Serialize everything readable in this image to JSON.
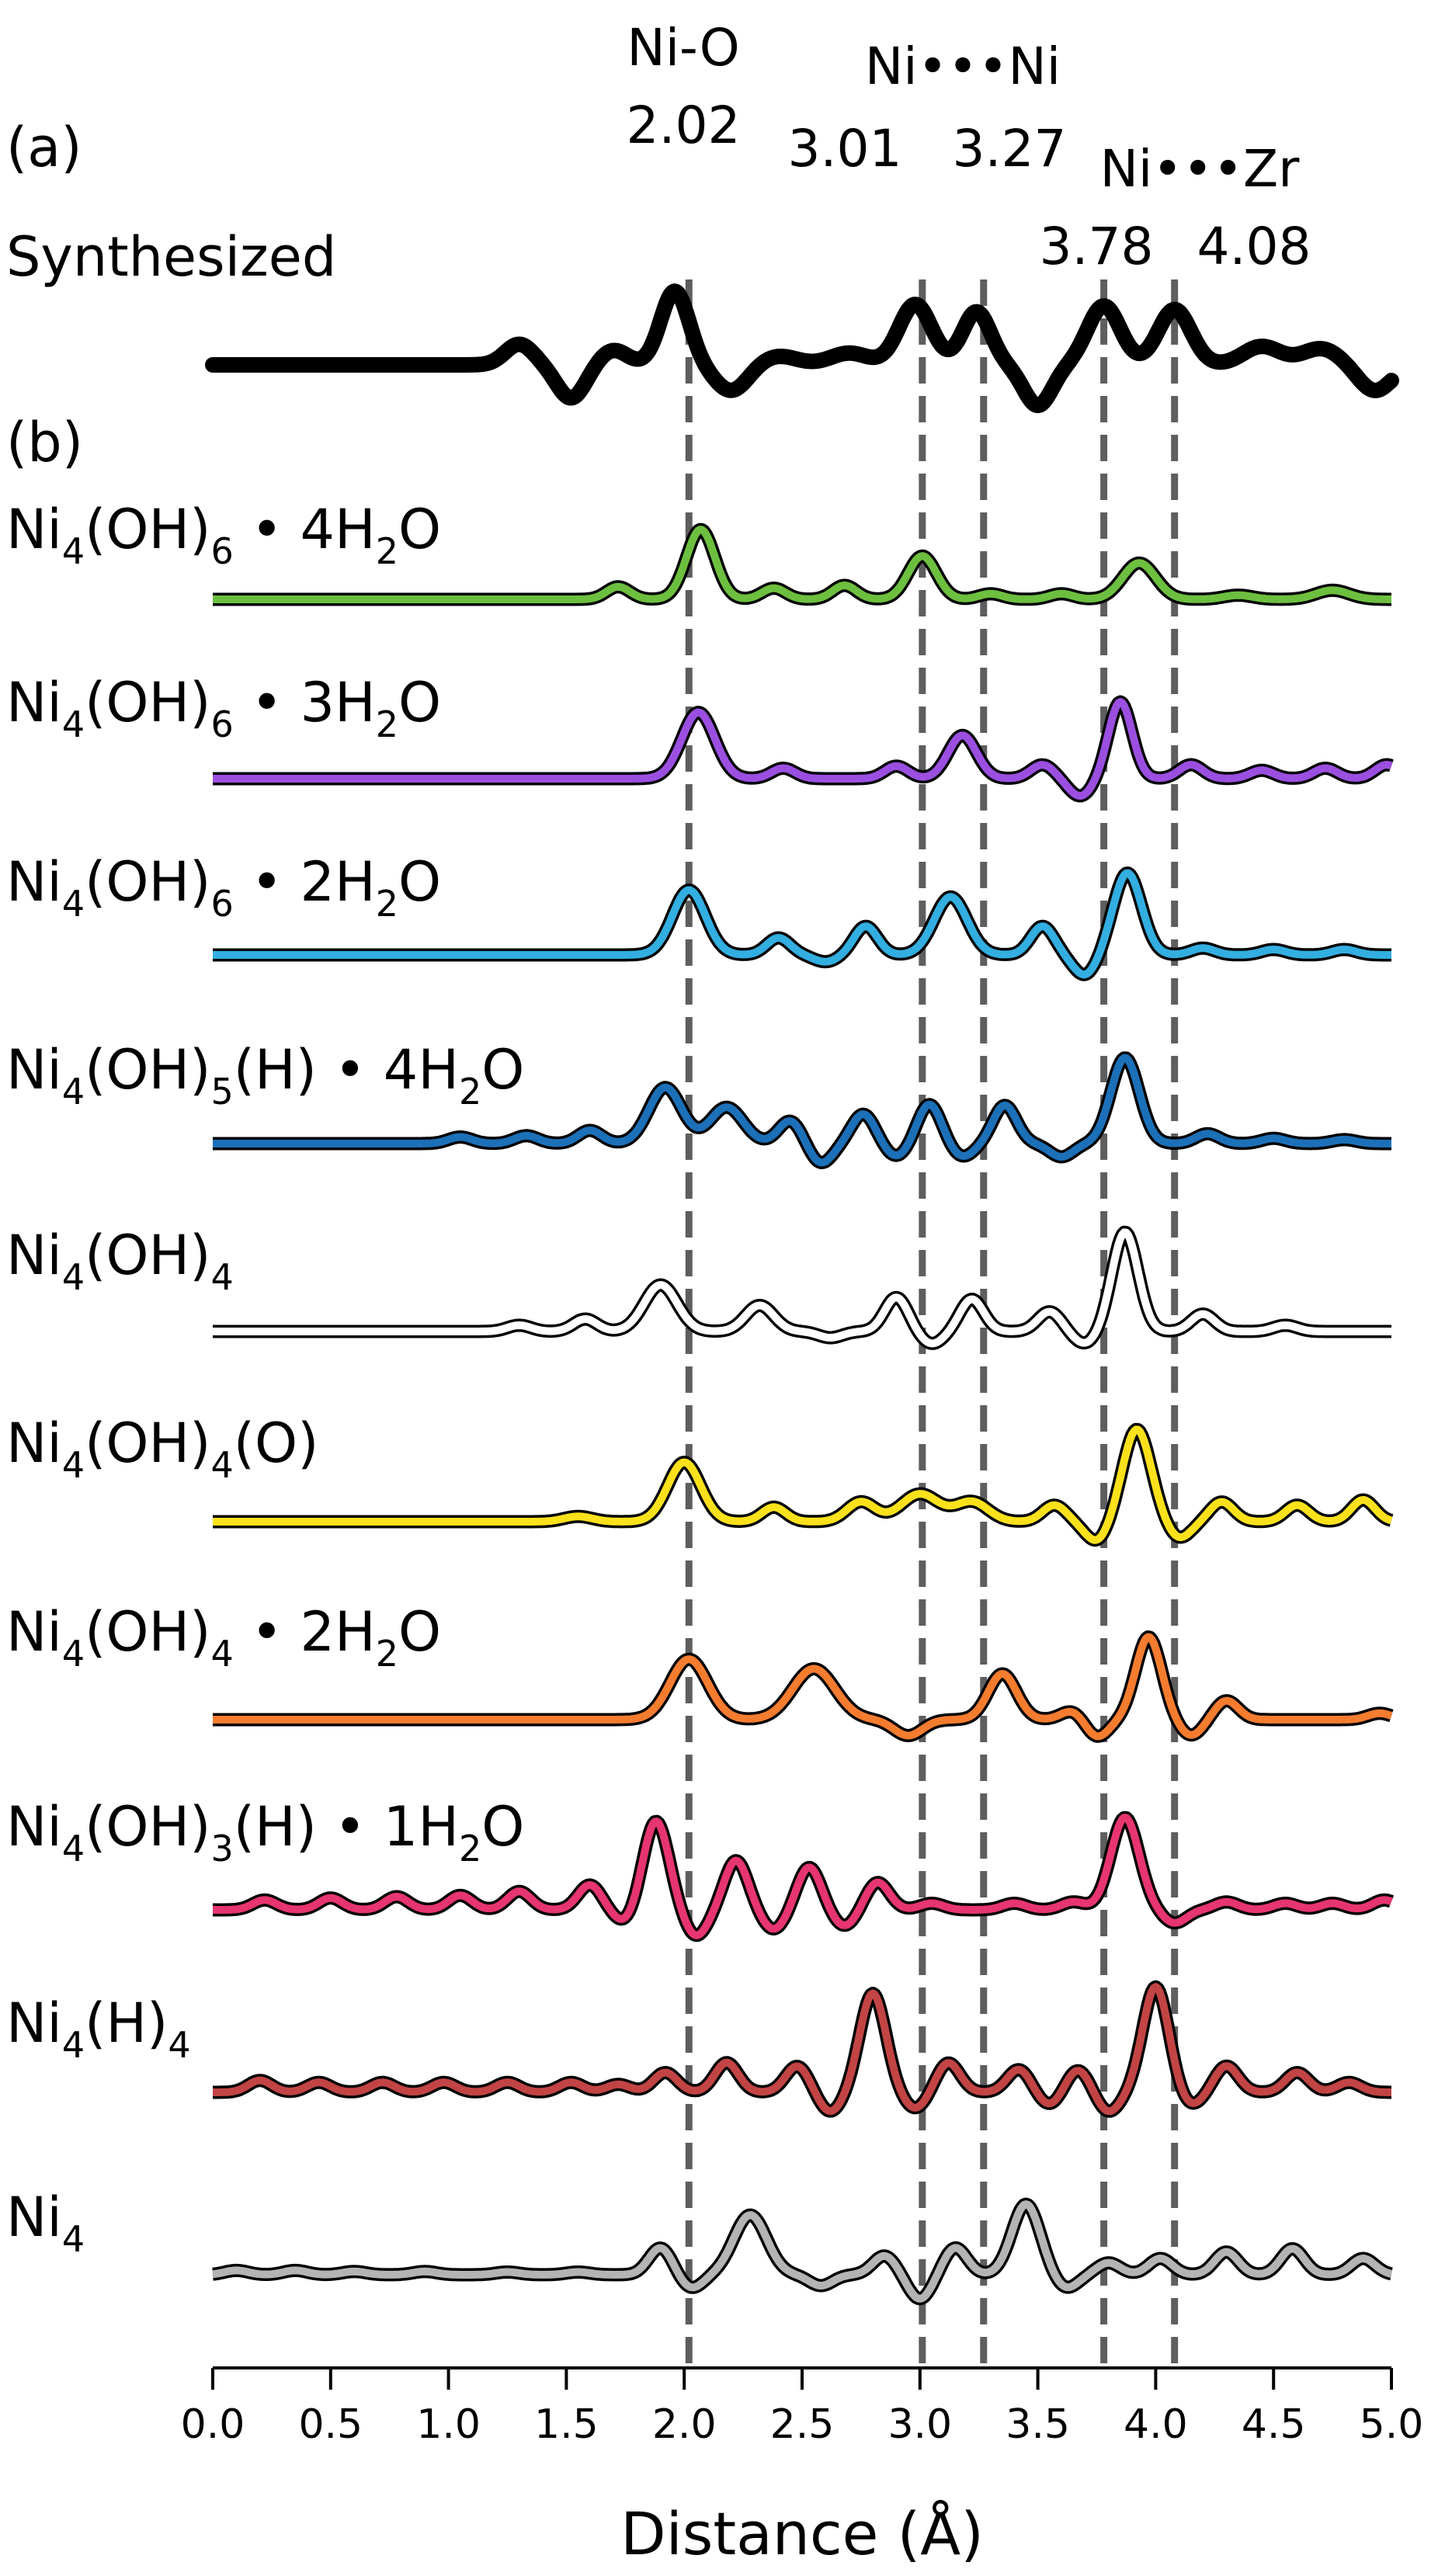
{
  "chart_data": {
    "type": "line",
    "xlabel": "Distance (Å)",
    "xlim": [
      0.0,
      5.0
    ],
    "x_ticks": [
      "0.0",
      "0.5",
      "1.0",
      "1.5",
      "2.0",
      "2.5",
      "3.0",
      "3.5",
      "4.0",
      "4.5",
      "5.0"
    ],
    "panel_labels": {
      "a": "(a)",
      "b": "(b)"
    },
    "reference_lines": [
      {
        "x": 2.02,
        "value_label": "2.02"
      },
      {
        "x": 3.01,
        "value_label": "3.01"
      },
      {
        "x": 3.27,
        "value_label": "3.27"
      },
      {
        "x": 3.78,
        "value_label": "3.78"
      },
      {
        "x": 4.08,
        "value_label": "4.08"
      }
    ],
    "reference_groups": {
      "ni_o": "Ni-O",
      "ni_ni": "Ni•••Ni",
      "ni_zr": "Ni•••Zr"
    },
    "series": [
      {
        "key": "synth",
        "name": "Synthesized",
        "color": "#000000",
        "thick": true,
        "peaks": [
          [
            1.96,
            1.0,
            0.06
          ],
          [
            2.98,
            0.82,
            0.07
          ],
          [
            3.24,
            0.72,
            0.06
          ],
          [
            3.78,
            0.8,
            0.07
          ],
          [
            4.08,
            0.75,
            0.07
          ],
          [
            1.3,
            0.28,
            0.06
          ],
          [
            1.7,
            0.2,
            0.06
          ],
          [
            2.4,
            0.12,
            0.08
          ],
          [
            2.7,
            0.16,
            0.08
          ],
          [
            4.45,
            0.25,
            0.08
          ],
          [
            4.7,
            0.22,
            0.08
          ],
          [
            1.52,
            -0.45,
            0.06
          ],
          [
            3.5,
            -0.55,
            0.06
          ],
          [
            2.2,
            -0.35,
            0.07
          ],
          [
            4.93,
            -0.35,
            0.07
          ]
        ]
      },
      {
        "key": "s1",
        "name": "Ni4(OH)6 • 4H2O",
        "color": "#6dbf3f",
        "peaks": [
          [
            2.07,
            1.0,
            0.06
          ],
          [
            3.01,
            0.62,
            0.06
          ],
          [
            3.93,
            0.52,
            0.07
          ],
          [
            1.72,
            0.18,
            0.05
          ],
          [
            2.38,
            0.16,
            0.05
          ],
          [
            2.68,
            0.2,
            0.05
          ],
          [
            3.3,
            0.08,
            0.05
          ],
          [
            3.6,
            0.08,
            0.05
          ],
          [
            4.75,
            0.13,
            0.07
          ],
          [
            4.35,
            0.06,
            0.06
          ]
        ]
      },
      {
        "key": "s2",
        "name": "Ni4(OH)6 • 3H2O",
        "color": "#9b4fe0",
        "peaks": [
          [
            2.06,
            0.95,
            0.07
          ],
          [
            3.18,
            0.62,
            0.06
          ],
          [
            3.85,
            1.1,
            0.05
          ],
          [
            2.42,
            0.15,
            0.05
          ],
          [
            2.9,
            0.18,
            0.05
          ],
          [
            3.52,
            0.2,
            0.05
          ],
          [
            4.15,
            0.2,
            0.05
          ],
          [
            4.45,
            0.12,
            0.05
          ],
          [
            4.72,
            0.15,
            0.05
          ],
          [
            4.98,
            0.2,
            0.05
          ],
          [
            3.68,
            -0.25,
            0.05
          ]
        ]
      },
      {
        "key": "s3",
        "name": "Ni4(OH)6 • 2H2O",
        "color": "#33aee0",
        "peaks": [
          [
            2.02,
            0.95,
            0.07
          ],
          [
            3.13,
            0.85,
            0.07
          ],
          [
            3.88,
            1.2,
            0.06
          ],
          [
            2.4,
            0.25,
            0.05
          ],
          [
            2.77,
            0.42,
            0.05
          ],
          [
            3.52,
            0.42,
            0.05
          ],
          [
            2.6,
            -0.1,
            0.05
          ],
          [
            3.7,
            -0.3,
            0.05
          ],
          [
            4.2,
            0.1,
            0.05
          ],
          [
            4.5,
            0.08,
            0.05
          ],
          [
            4.8,
            0.08,
            0.05
          ]
        ]
      },
      {
        "key": "s4",
        "name": "Ni4(OH)5(H) • 4H2O",
        "color": "#1c70b8",
        "peaks": [
          [
            1.92,
            0.85,
            0.07
          ],
          [
            2.18,
            0.55,
            0.07
          ],
          [
            3.04,
            0.6,
            0.05
          ],
          [
            3.36,
            0.58,
            0.05
          ],
          [
            3.87,
            1.3,
            0.06
          ],
          [
            2.45,
            0.35,
            0.05
          ],
          [
            2.76,
            0.45,
            0.05
          ],
          [
            2.58,
            -0.3,
            0.05
          ],
          [
            2.9,
            -0.2,
            0.05
          ],
          [
            3.18,
            -0.2,
            0.05
          ],
          [
            3.6,
            -0.2,
            0.05
          ],
          [
            1.33,
            0.12,
            0.05
          ],
          [
            1.6,
            0.2,
            0.05
          ],
          [
            1.05,
            0.1,
            0.05
          ],
          [
            4.22,
            0.15,
            0.05
          ],
          [
            4.5,
            0.08,
            0.05
          ],
          [
            4.8,
            0.06,
            0.05
          ]
        ]
      },
      {
        "key": "s5",
        "name": "Ni4(OH)4",
        "color": "#ffffff",
        "peaks": [
          [
            1.9,
            0.75,
            0.07
          ],
          [
            2.32,
            0.42,
            0.06
          ],
          [
            2.9,
            0.55,
            0.05
          ],
          [
            3.22,
            0.52,
            0.05
          ],
          [
            3.87,
            1.6,
            0.055
          ],
          [
            3.55,
            0.32,
            0.05
          ],
          [
            4.2,
            0.28,
            0.05
          ],
          [
            1.58,
            0.2,
            0.05
          ],
          [
            1.3,
            0.1,
            0.05
          ],
          [
            4.55,
            0.1,
            0.05
          ],
          [
            2.62,
            -0.1,
            0.05
          ],
          [
            3.05,
            -0.2,
            0.05
          ],
          [
            3.7,
            -0.2,
            0.05
          ]
        ]
      },
      {
        "key": "s6",
        "name": "Ni4(OH)4(O)",
        "color": "#fbe11b",
        "peaks": [
          [
            2.0,
            0.9,
            0.07
          ],
          [
            3.92,
            1.4,
            0.06
          ],
          [
            2.38,
            0.22,
            0.05
          ],
          [
            2.75,
            0.3,
            0.06
          ],
          [
            3.0,
            0.42,
            0.08
          ],
          [
            3.22,
            0.3,
            0.07
          ],
          [
            3.57,
            0.25,
            0.05
          ],
          [
            4.28,
            0.3,
            0.05
          ],
          [
            4.6,
            0.25,
            0.05
          ],
          [
            4.88,
            0.33,
            0.05
          ],
          [
            1.55,
            0.08,
            0.06
          ],
          [
            3.75,
            -0.3,
            0.05
          ],
          [
            4.1,
            -0.25,
            0.05
          ]
        ]
      },
      {
        "key": "s7",
        "name": "Ni4(OH)4 • 2H2O",
        "color": "#f47c2f",
        "peaks": [
          [
            2.02,
            0.95,
            0.08
          ],
          [
            2.55,
            0.8,
            0.09
          ],
          [
            3.35,
            0.72,
            0.06
          ],
          [
            3.97,
            1.3,
            0.055
          ],
          [
            3.65,
            0.15,
            0.05
          ],
          [
            4.3,
            0.3,
            0.05
          ],
          [
            2.95,
            -0.25,
            0.06
          ],
          [
            3.75,
            -0.28,
            0.05
          ],
          [
            4.15,
            -0.25,
            0.05
          ],
          [
            4.95,
            0.1,
            0.05
          ]
        ]
      },
      {
        "key": "s8",
        "name": "Ni4(OH)3(H) • 1H2O",
        "color": "#e6356f",
        "peaks": [
          [
            1.88,
            1.35,
            0.055
          ],
          [
            2.22,
            0.75,
            0.05
          ],
          [
            2.53,
            0.65,
            0.05
          ],
          [
            2.82,
            0.42,
            0.05
          ],
          [
            3.87,
            1.4,
            0.06
          ],
          [
            1.6,
            0.38,
            0.05
          ],
          [
            1.3,
            0.28,
            0.05
          ],
          [
            1.05,
            0.22,
            0.05
          ],
          [
            0.78,
            0.2,
            0.05
          ],
          [
            0.5,
            0.18,
            0.05
          ],
          [
            0.22,
            0.15,
            0.05
          ],
          [
            2.05,
            -0.4,
            0.05
          ],
          [
            2.38,
            -0.3,
            0.05
          ],
          [
            2.68,
            -0.25,
            0.05
          ],
          [
            3.05,
            0.1,
            0.05
          ],
          [
            3.4,
            0.1,
            0.05
          ],
          [
            3.65,
            0.12,
            0.05
          ],
          [
            4.08,
            -0.2,
            0.05
          ],
          [
            4.3,
            0.12,
            0.05
          ],
          [
            4.55,
            0.1,
            0.05
          ],
          [
            4.75,
            0.1,
            0.05
          ],
          [
            4.97,
            0.15,
            0.05
          ],
          [
            1.75,
            -0.2,
            0.05
          ]
        ]
      },
      {
        "key": "s9",
        "name": "Ni4(H)4",
        "color": "#c24444",
        "peaks": [
          [
            2.8,
            1.5,
            0.055
          ],
          [
            4.0,
            1.6,
            0.055
          ],
          [
            2.18,
            0.45,
            0.05
          ],
          [
            1.92,
            0.3,
            0.05
          ],
          [
            2.48,
            0.4,
            0.05
          ],
          [
            3.12,
            0.45,
            0.05
          ],
          [
            3.42,
            0.35,
            0.05
          ],
          [
            3.67,
            0.35,
            0.05
          ],
          [
            4.3,
            0.4,
            0.05
          ],
          [
            4.6,
            0.3,
            0.05
          ],
          [
            0.2,
            0.18,
            0.05
          ],
          [
            0.45,
            0.15,
            0.05
          ],
          [
            0.72,
            0.15,
            0.05
          ],
          [
            0.98,
            0.15,
            0.05
          ],
          [
            1.25,
            0.15,
            0.05
          ],
          [
            1.52,
            0.15,
            0.05
          ],
          [
            1.72,
            0.12,
            0.05
          ],
          [
            2.62,
            -0.3,
            0.05
          ],
          [
            2.98,
            -0.25,
            0.05
          ],
          [
            3.55,
            -0.2,
            0.05
          ],
          [
            3.8,
            -0.3,
            0.05
          ],
          [
            4.15,
            -0.2,
            0.05
          ],
          [
            4.82,
            0.15,
            0.05
          ]
        ]
      },
      {
        "key": "s10",
        "name": "Ni4",
        "color": "#b4b4b4",
        "peaks": [
          [
            1.9,
            0.5,
            0.05
          ],
          [
            2.28,
            1.1,
            0.07
          ],
          [
            3.45,
            1.3,
            0.06
          ],
          [
            3.15,
            0.5,
            0.05
          ],
          [
            2.85,
            0.35,
            0.05
          ],
          [
            3.8,
            0.22,
            0.05
          ],
          [
            4.02,
            0.3,
            0.05
          ],
          [
            4.3,
            0.42,
            0.05
          ],
          [
            4.58,
            0.48,
            0.05
          ],
          [
            4.88,
            0.3,
            0.05
          ],
          [
            2.03,
            -0.25,
            0.05
          ],
          [
            3.0,
            -0.45,
            0.05
          ],
          [
            2.58,
            -0.2,
            0.05
          ],
          [
            3.62,
            -0.25,
            0.05
          ],
          [
            0.1,
            0.08,
            0.05
          ],
          [
            0.35,
            0.08,
            0.05
          ],
          [
            0.6,
            0.06,
            0.05
          ],
          [
            0.9,
            0.06,
            0.05
          ],
          [
            1.25,
            0.05,
            0.05
          ],
          [
            1.55,
            0.05,
            0.05
          ]
        ]
      }
    ]
  }
}
